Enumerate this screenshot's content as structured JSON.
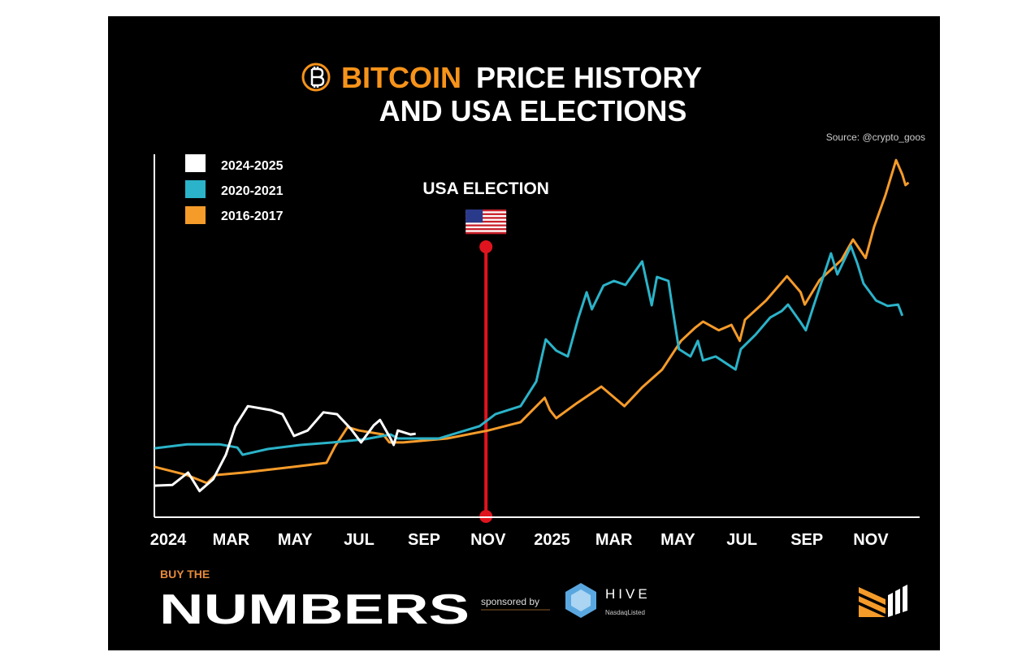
{
  "header": {
    "title_highlight": "BITCOIN",
    "title_rest": "PRICE HISTORY",
    "title_line2": "AND USA ELECTIONS",
    "source": "Source: @crypto_goos",
    "bitcoin_icon": "bitcoin-coin-icon"
  },
  "colors": {
    "background": "#000000",
    "accent_orange": "#f7931a",
    "series_2024": "#ffffff",
    "series_2020": "#2bb3c9",
    "series_2016": "#f59b2a",
    "election_line": "#e0141e"
  },
  "chart_data": {
    "type": "line",
    "title": "BITCOIN PRICE HISTORY AND USA ELECTIONS",
    "xlabel": "",
    "ylabel": "",
    "y_axis_labels": false,
    "grid": false,
    "legend_position": "top-left",
    "x_ticks": [
      {
        "label": "2024",
        "date": "2024-01-01"
      },
      {
        "label": "MAR",
        "date": "2024-03-01"
      },
      {
        "label": "MAY",
        "date": "2024-05-01"
      },
      {
        "label": "JUL",
        "date": "2024-07-01"
      },
      {
        "label": "SEP",
        "date": "2024-09-01"
      },
      {
        "label": "NOV",
        "date": "2024-11-01"
      },
      {
        "label": "2025",
        "date": "2025-01-01"
      },
      {
        "label": "MAR",
        "date": "2025-03-01"
      },
      {
        "label": "MAY",
        "date": "2025-05-01"
      },
      {
        "label": "JUL",
        "date": "2025-07-01"
      },
      {
        "label": "SEP",
        "date": "2025-09-01"
      },
      {
        "label": "NOV",
        "date": "2025-11-01"
      }
    ],
    "ylim": [
      0,
      100
    ],
    "annotation": {
      "label": "USA ELECTION",
      "date": "2024-10-30",
      "icon": "us-flag-icon"
    },
    "series": [
      {
        "name": "2024-2025",
        "color": "#ffffff",
        "points": [
          [
            "2023-12-19",
            8.7
          ],
          [
            "2024-01-05",
            8.9
          ],
          [
            "2024-01-20",
            12.3
          ],
          [
            "2024-01-31",
            7.2
          ],
          [
            "2024-02-13",
            10.5
          ],
          [
            "2024-02-25",
            17.2
          ],
          [
            "2024-03-05",
            25.1
          ],
          [
            "2024-03-17",
            30.6
          ],
          [
            "2024-03-29",
            30.0
          ],
          [
            "2024-04-08",
            29.5
          ],
          [
            "2024-04-19",
            28.4
          ],
          [
            "2024-04-30",
            22.4
          ],
          [
            "2024-05-13",
            23.9
          ],
          [
            "2024-05-28",
            28.9
          ],
          [
            "2024-06-10",
            28.4
          ],
          [
            "2024-06-23",
            24.4
          ],
          [
            "2024-07-03",
            20.6
          ],
          [
            "2024-07-15",
            25.3
          ],
          [
            "2024-07-21",
            26.8
          ],
          [
            "2024-07-31",
            21.7
          ],
          [
            "2024-08-03",
            19.9
          ],
          [
            "2024-08-07",
            23.9
          ],
          [
            "2024-08-19",
            22.8
          ],
          [
            "2024-08-24",
            23.0
          ]
        ]
      },
      {
        "name": "2020-2021",
        "color": "#2bb3c9",
        "points": [
          [
            "2023-12-19",
            19.0
          ],
          [
            "2024-01-19",
            20.1
          ],
          [
            "2024-02-19",
            20.1
          ],
          [
            "2024-03-07",
            19.2
          ],
          [
            "2024-03-12",
            17.2
          ],
          [
            "2024-04-05",
            18.8
          ],
          [
            "2024-05-06",
            19.9
          ],
          [
            "2024-06-06",
            20.6
          ],
          [
            "2024-07-07",
            21.5
          ],
          [
            "2024-07-31",
            22.8
          ],
          [
            "2024-08-07",
            21.7
          ],
          [
            "2024-09-15",
            21.7
          ],
          [
            "2024-10-24",
            25.1
          ],
          [
            "2024-11-08",
            28.4
          ],
          [
            "2024-12-02",
            30.6
          ],
          [
            "2024-12-17",
            37.4
          ],
          [
            "2024-12-26",
            49.0
          ],
          [
            "2025-01-05",
            45.9
          ],
          [
            "2025-01-16",
            44.3
          ],
          [
            "2025-01-26",
            54.8
          ],
          [
            "2025-02-03",
            62.0
          ],
          [
            "2025-02-08",
            57.3
          ],
          [
            "2025-02-19",
            63.8
          ],
          [
            "2025-03-01",
            65.1
          ],
          [
            "2025-03-12",
            64.0
          ],
          [
            "2025-03-28",
            70.5
          ],
          [
            "2025-04-06",
            58.4
          ],
          [
            "2025-04-11",
            66.2
          ],
          [
            "2025-04-22",
            65.1
          ],
          [
            "2025-04-26",
            57.3
          ],
          [
            "2025-05-02",
            46.3
          ],
          [
            "2025-05-13",
            44.3
          ],
          [
            "2025-05-20",
            48.6
          ],
          [
            "2025-05-25",
            43.2
          ],
          [
            "2025-06-06",
            44.3
          ],
          [
            "2025-06-25",
            40.7
          ],
          [
            "2025-06-30",
            46.3
          ],
          [
            "2025-07-14",
            50.3
          ],
          [
            "2025-07-28",
            55.0
          ],
          [
            "2025-08-08",
            56.8
          ],
          [
            "2025-08-14",
            58.6
          ],
          [
            "2025-08-26",
            53.7
          ],
          [
            "2025-08-31",
            51.5
          ],
          [
            "2025-09-07",
            57.9
          ],
          [
            "2025-09-24",
            72.7
          ],
          [
            "2025-09-30",
            66.9
          ],
          [
            "2025-10-13",
            74.7
          ],
          [
            "2025-10-19",
            70.0
          ],
          [
            "2025-10-25",
            64.4
          ],
          [
            "2025-11-06",
            59.7
          ],
          [
            "2025-11-17",
            58.2
          ],
          [
            "2025-11-27",
            58.6
          ],
          [
            "2025-12-01",
            55.5
          ]
        ]
      },
      {
        "name": "2016-2017",
        "color": "#f59b2a",
        "points": [
          [
            "2023-12-19",
            13.9
          ],
          [
            "2024-01-19",
            11.6
          ],
          [
            "2024-02-07",
            9.4
          ],
          [
            "2024-02-15",
            11.6
          ],
          [
            "2024-03-13",
            12.3
          ],
          [
            "2024-04-30",
            13.9
          ],
          [
            "2024-05-31",
            15.0
          ],
          [
            "2024-06-08",
            19.5
          ],
          [
            "2024-06-20",
            24.8
          ],
          [
            "2024-07-01",
            23.9
          ],
          [
            "2024-07-24",
            22.8
          ],
          [
            "2024-07-30",
            20.6
          ],
          [
            "2024-08-12",
            20.6
          ],
          [
            "2024-09-23",
            21.7
          ],
          [
            "2024-11-01",
            23.9
          ],
          [
            "2024-12-02",
            26.2
          ],
          [
            "2024-12-25",
            32.9
          ],
          [
            "2024-12-30",
            29.5
          ],
          [
            "2025-01-05",
            27.3
          ],
          [
            "2025-01-25",
            31.5
          ],
          [
            "2025-02-17",
            36.0
          ],
          [
            "2025-03-11",
            30.6
          ],
          [
            "2025-03-28",
            35.8
          ],
          [
            "2025-04-16",
            40.7
          ],
          [
            "2025-05-04",
            48.6
          ],
          [
            "2025-05-17",
            52.1
          ],
          [
            "2025-05-25",
            53.9
          ],
          [
            "2025-06-09",
            51.5
          ],
          [
            "2025-06-21",
            53.0
          ],
          [
            "2025-06-29",
            48.6
          ],
          [
            "2025-07-04",
            54.4
          ],
          [
            "2025-07-24",
            59.7
          ],
          [
            "2025-08-13",
            66.4
          ],
          [
            "2025-08-26",
            62.0
          ],
          [
            "2025-08-30",
            58.6
          ],
          [
            "2025-09-13",
            65.3
          ],
          [
            "2025-10-04",
            70.9
          ],
          [
            "2025-10-15",
            76.5
          ],
          [
            "2025-10-27",
            71.4
          ],
          [
            "2025-11-04",
            79.9
          ],
          [
            "2025-11-15",
            88.8
          ],
          [
            "2025-11-25",
            98.4
          ],
          [
            "2025-12-01",
            94.4
          ],
          [
            "2025-12-04",
            91.5
          ],
          [
            "2025-12-07",
            92.2
          ]
        ]
      }
    ]
  },
  "footer": {
    "brand_small": "BUY THE",
    "brand_big": "NUMBERS",
    "sponsored": "sponsored by",
    "sponsor_name": "HIVE",
    "sponsor_sub": "NasdaqListed",
    "sponsor_icon": "hive-hexagon-icon",
    "corner_logo": "buy-the-numbers-logo-icon"
  }
}
